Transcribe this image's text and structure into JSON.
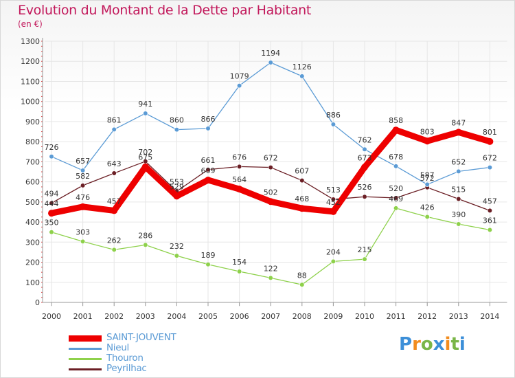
{
  "chart_data": {
    "type": "line",
    "title": "Evolution du Montant de la Dette par Habitant",
    "ylabel": "(en €)",
    "x": [
      "2000",
      "2001",
      "2002",
      "2003",
      "2004",
      "2005",
      "2006",
      "2007",
      "2008",
      "2009",
      "2010",
      "2011",
      "2012",
      "2013",
      "2014"
    ],
    "ylim": [
      0,
      1300
    ],
    "yticks": [
      0,
      100,
      200,
      300,
      400,
      500,
      600,
      700,
      800,
      900,
      1000,
      1100,
      1200,
      1300
    ],
    "grid": true,
    "legend_position": "bottom-left",
    "series": [
      {
        "name": "SAINT-JOUVENT",
        "color": "#ee0000",
        "values": [
          444,
          476,
          457,
          675,
          529,
          609,
          564,
          502,
          468,
          452,
          673,
          858,
          803,
          847,
          801
        ]
      },
      {
        "name": "Nieul",
        "color": "#5b9bd5",
        "values": [
          726,
          657,
          861,
          941,
          860,
          866,
          1079,
          1194,
          1126,
          886,
          762,
          678,
          587,
          652,
          672
        ]
      },
      {
        "name": "Thouron",
        "color": "#8ed14b",
        "values": [
          350,
          303,
          262,
          286,
          232,
          189,
          154,
          122,
          88,
          204,
          215,
          469,
          426,
          390,
          361
        ]
      },
      {
        "name": "Peyrilhac",
        "color": "#6b1f25",
        "values": [
          494,
          582,
          643,
          702,
          553,
          661,
          676,
          672,
          607,
          513,
          526,
          520,
          572,
          515,
          457
        ]
      }
    ],
    "data_labels": {
      "SAINT-JOUVENT": [
        "444",
        "476",
        "457",
        "675",
        "529",
        "609",
        "564",
        "502",
        "468",
        "452",
        "673",
        "858",
        "803",
        "847",
        "801"
      ],
      "Nieul": [
        "726",
        "657",
        "861",
        "941",
        "860",
        "866",
        "1079",
        "1194",
        "1126",
        "886",
        "762",
        "678",
        "587",
        "652",
        "672"
      ],
      "Thouron": [
        "350",
        "303",
        "262",
        "286",
        "232",
        "189",
        "154",
        "122",
        "88",
        "204",
        "215",
        "469",
        "426",
        "390",
        "361"
      ],
      "Peyrilhac": [
        "494",
        "582",
        "643",
        "702",
        "553",
        "661",
        "676",
        "672",
        "607",
        "513",
        "526",
        "520",
        "572",
        "515",
        "457"
      ]
    }
  },
  "legend": {
    "items": [
      {
        "label": "SAINT-JOUVENT",
        "color": "#ee0000"
      },
      {
        "label": "Nieul",
        "color": "#5b9bd5"
      },
      {
        "label": "Thouron",
        "color": "#8ed14b"
      },
      {
        "label": "Peyrilhac",
        "color": "#6b1f25"
      }
    ]
  },
  "logo": {
    "letters": [
      "P",
      "r",
      "o",
      "x",
      "i",
      "t",
      "i"
    ],
    "colors": [
      "#3c8fd8",
      "#f28c1e",
      "#7ab648",
      "#3c8fd8",
      "#f28c1e",
      "#7ab648",
      "#3c8fd8"
    ]
  },
  "axis_color": "#999999",
  "grid_color": "#e6e6e6"
}
